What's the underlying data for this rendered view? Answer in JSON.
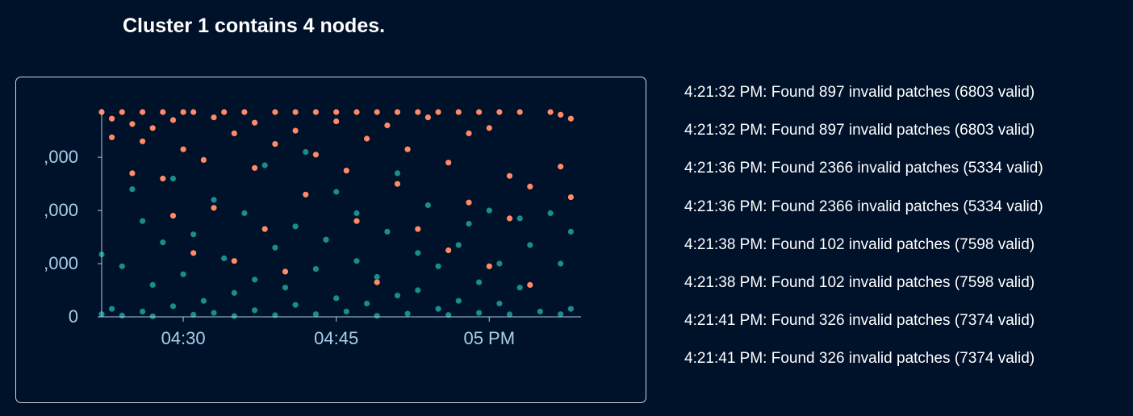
{
  "header": {
    "title": "Cluster 1 contains 4 nodes."
  },
  "colors": {
    "background": "#00112a",
    "panel_border": "#d0d4dc",
    "axis": "#a8cfe8",
    "text": "#ffffff",
    "invalid_series": "#ff8a65",
    "valid_series": "#198c8c"
  },
  "log": [
    "4:21:32 PM: Found 897 invalid patches (6803 valid)",
    "4:21:32 PM: Found 897 invalid patches (6803 valid)",
    "4:21:36 PM: Found 2366 invalid patches (5334 valid)",
    "4:21:36 PM: Found 2366 invalid patches (5334 valid)",
    "4:21:38 PM: Found 102 invalid patches (7598 valid)",
    "4:21:38 PM: Found 102 invalid patches (7598 valid)",
    "4:21:41 PM: Found 326 invalid patches (7374 valid)",
    "4:21:41 PM: Found 326 invalid patches (7374 valid)"
  ],
  "chart_data": {
    "type": "scatter",
    "x_range": [
      "04:22",
      "05:09"
    ],
    "y_range": [
      0,
      7700
    ],
    "x_ticks": [
      {
        "value": "04:30",
        "label": "04:30"
      },
      {
        "value": "04:45",
        "label": "04:45"
      },
      {
        "value": "05:00",
        "label": "05 PM"
      }
    ],
    "y_ticks": [
      {
        "value": 0,
        "label": "0"
      },
      {
        "value": 2000,
        "label": ",000"
      },
      {
        "value": 4000,
        "label": ",000"
      },
      {
        "value": 6000,
        "label": ",000"
      }
    ],
    "grid": false,
    "series": [
      {
        "color": "#ff8a65",
        "points": [
          [
            "04:22",
            7700
          ],
          [
            "04:23",
            7450
          ],
          [
            "04:23",
            6750
          ],
          [
            "04:24",
            7700
          ],
          [
            "04:25",
            7250
          ],
          [
            "04:25",
            5400
          ],
          [
            "04:26",
            7700
          ],
          [
            "04:26",
            6600
          ],
          [
            "04:27",
            7100
          ],
          [
            "04:28",
            7700
          ],
          [
            "04:28",
            5200
          ],
          [
            "04:29",
            3800
          ],
          [
            "04:29",
            7400
          ],
          [
            "04:30",
            7700
          ],
          [
            "04:30",
            6300
          ],
          [
            "04:31",
            2400
          ],
          [
            "04:31",
            7700
          ],
          [
            "04:32",
            5900
          ],
          [
            "04:33",
            7500
          ],
          [
            "04:33",
            4100
          ],
          [
            "04:34",
            7700
          ],
          [
            "04:35",
            6900
          ],
          [
            "04:35",
            2100
          ],
          [
            "04:36",
            7700
          ],
          [
            "04:37",
            5600
          ],
          [
            "04:37",
            7300
          ],
          [
            "04:38",
            3300
          ],
          [
            "04:39",
            7700
          ],
          [
            "04:39",
            6500
          ],
          [
            "04:40",
            1700
          ],
          [
            "04:41",
            7700
          ],
          [
            "04:41",
            7000
          ],
          [
            "04:42",
            4600
          ],
          [
            "04:43",
            7700
          ],
          [
            "04:43",
            6100
          ],
          [
            "04:44",
            2900
          ],
          [
            "04:45",
            7700
          ],
          [
            "04:45",
            7350
          ],
          [
            "04:46",
            5500
          ],
          [
            "04:47",
            7700
          ],
          [
            "04:47",
            3600
          ],
          [
            "04:48",
            6700
          ],
          [
            "04:49",
            7700
          ],
          [
            "04:49",
            1300
          ],
          [
            "04:50",
            7200
          ],
          [
            "04:51",
            7700
          ],
          [
            "04:51",
            5000
          ],
          [
            "04:52",
            6300
          ],
          [
            "04:53",
            7700
          ],
          [
            "04:53",
            3300
          ],
          [
            "04:54",
            7500
          ],
          [
            "04:55",
            7700
          ],
          [
            "04:56",
            5800
          ],
          [
            "04:56",
            2500
          ],
          [
            "04:57",
            7700
          ],
          [
            "04:58",
            6900
          ],
          [
            "04:58",
            4300
          ],
          [
            "04:59",
            7700
          ],
          [
            "05:00",
            7100
          ],
          [
            "05:00",
            1900
          ],
          [
            "05:01",
            7700
          ],
          [
            "05:02",
            5300
          ],
          [
            "05:02",
            3700
          ],
          [
            "05:03",
            7700
          ],
          [
            "05:04",
            4900
          ],
          [
            "05:04",
            1200
          ],
          [
            "05:06",
            7700
          ],
          [
            "05:07",
            5650
          ],
          [
            "05:07",
            7600
          ],
          [
            "05:08",
            4500
          ],
          [
            "05:08",
            7450
          ]
        ]
      },
      {
        "color": "#198c8c",
        "points": [
          [
            "04:22",
            100
          ],
          [
            "04:22",
            2350
          ],
          [
            "04:23",
            300
          ],
          [
            "04:24",
            1900
          ],
          [
            "04:24",
            50
          ],
          [
            "04:25",
            4800
          ],
          [
            "04:26",
            200
          ],
          [
            "04:26",
            3600
          ],
          [
            "04:27",
            1200
          ],
          [
            "04:27",
            20
          ],
          [
            "04:28",
            2800
          ],
          [
            "04:29",
            400
          ],
          [
            "04:29",
            5200
          ],
          [
            "04:30",
            1600
          ],
          [
            "04:31",
            80
          ],
          [
            "04:31",
            3100
          ],
          [
            "04:32",
            600
          ],
          [
            "04:33",
            4400
          ],
          [
            "04:33",
            150
          ],
          [
            "04:34",
            2200
          ],
          [
            "04:35",
            900
          ],
          [
            "04:35",
            30
          ],
          [
            "04:36",
            3900
          ],
          [
            "04:37",
            1400
          ],
          [
            "04:37",
            250
          ],
          [
            "04:38",
            5700
          ],
          [
            "04:39",
            2600
          ],
          [
            "04:39",
            60
          ],
          [
            "04:40",
            1100
          ],
          [
            "04:41",
            3400
          ],
          [
            "04:41",
            450
          ],
          [
            "04:42",
            6200
          ],
          [
            "04:43",
            1800
          ],
          [
            "04:43",
            100
          ],
          [
            "04:44",
            2900
          ],
          [
            "04:45",
            700
          ],
          [
            "04:45",
            4700
          ],
          [
            "04:46",
            200
          ],
          [
            "04:47",
            2100
          ],
          [
            "04:47",
            3900
          ],
          [
            "04:48",
            500
          ],
          [
            "04:49",
            1500
          ],
          [
            "04:49",
            40
          ],
          [
            "04:50",
            3200
          ],
          [
            "04:51",
            800
          ],
          [
            "04:51",
            5400
          ],
          [
            "04:52",
            120
          ],
          [
            "04:53",
            2400
          ],
          [
            "04:53",
            1000
          ],
          [
            "04:54",
            4200
          ],
          [
            "04:55",
            300
          ],
          [
            "04:55",
            1900
          ],
          [
            "04:56",
            70
          ],
          [
            "04:57",
            2700
          ],
          [
            "04:57",
            600
          ],
          [
            "04:58",
            3500
          ],
          [
            "04:59",
            150
          ],
          [
            "04:59",
            1300
          ],
          [
            "05:00",
            4000
          ],
          [
            "05:01",
            500
          ],
          [
            "05:01",
            2000
          ],
          [
            "05:02",
            90
          ],
          [
            "05:03",
            3700
          ],
          [
            "05:03",
            1100
          ],
          [
            "05:04",
            2700
          ],
          [
            "05:05",
            200
          ],
          [
            "05:06",
            3900
          ],
          [
            "05:07",
            2000
          ],
          [
            "05:07",
            100
          ],
          [
            "05:08",
            3200
          ],
          [
            "05:08",
            300
          ]
        ]
      }
    ]
  }
}
